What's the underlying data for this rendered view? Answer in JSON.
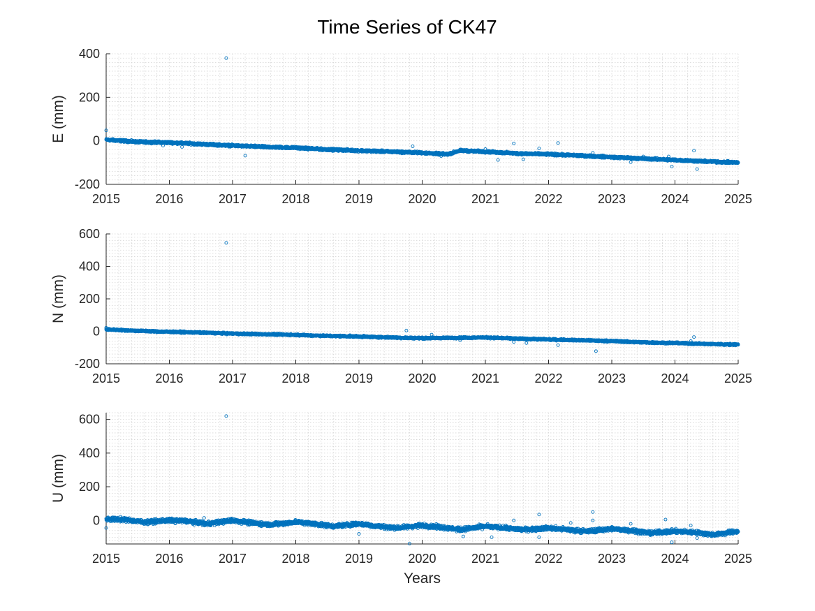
{
  "figure_title": "Time Series of CK47",
  "chart_data": [
    {
      "type": "scatter",
      "title": "",
      "xlabel": "",
      "ylabel": "E (mm)",
      "xlim": [
        2015,
        2025
      ],
      "ylim": [
        -200,
        400
      ],
      "x_ticks": [
        "2015",
        "2016",
        "2017",
        "2018",
        "2019",
        "2020",
        "2021",
        "2022",
        "2023",
        "2024",
        "2025"
      ],
      "y_ticks": [
        "-200",
        "0",
        "200",
        "400"
      ],
      "grid": true,
      "marker_color": "#0072BD",
      "trend": [
        [
          2015.0,
          5
        ],
        [
          2015.5,
          -5
        ],
        [
          2016.0,
          -8
        ],
        [
          2016.5,
          -15
        ],
        [
          2017.0,
          -22
        ],
        [
          2017.5,
          -28
        ],
        [
          2018.0,
          -32
        ],
        [
          2018.5,
          -40
        ],
        [
          2019.0,
          -45
        ],
        [
          2019.5,
          -50
        ],
        [
          2020.0,
          -55
        ],
        [
          2020.4,
          -62
        ],
        [
          2020.6,
          -45
        ],
        [
          2021.0,
          -50
        ],
        [
          2021.5,
          -58
        ],
        [
          2022.0,
          -62
        ],
        [
          2022.5,
          -68
        ],
        [
          2023.0,
          -75
        ],
        [
          2023.5,
          -82
        ],
        [
          2024.0,
          -88
        ],
        [
          2024.5,
          -95
        ],
        [
          2025.0,
          -100
        ]
      ],
      "outliers": [
        [
          2015.0,
          48
        ],
        [
          2015.9,
          -22
        ],
        [
          2016.2,
          -28
        ],
        [
          2016.9,
          380
        ],
        [
          2017.2,
          -68
        ],
        [
          2019.85,
          -25
        ],
        [
          2020.3,
          -70
        ],
        [
          2021.0,
          -38
        ],
        [
          2021.2,
          -88
        ],
        [
          2021.45,
          -12
        ],
        [
          2021.6,
          -85
        ],
        [
          2021.85,
          -35
        ],
        [
          2022.15,
          -10
        ],
        [
          2022.7,
          -55
        ],
        [
          2023.3,
          -98
        ],
        [
          2023.5,
          -72
        ],
        [
          2023.9,
          -72
        ],
        [
          2023.95,
          -118
        ],
        [
          2024.3,
          -45
        ],
        [
          2024.35,
          -130
        ]
      ],
      "noise_amplitude": 5
    },
    {
      "type": "scatter",
      "title": "",
      "xlabel": "",
      "ylabel": "N (mm)",
      "xlim": [
        2015,
        2025
      ],
      "ylim": [
        -200,
        600
      ],
      "x_ticks": [
        "2015",
        "2016",
        "2017",
        "2018",
        "2019",
        "2020",
        "2021",
        "2022",
        "2023",
        "2024",
        "2025"
      ],
      "y_ticks": [
        "-200",
        "0",
        "200",
        "400",
        "600"
      ],
      "grid": true,
      "marker_color": "#0072BD",
      "trend": [
        [
          2015.0,
          12
        ],
        [
          2015.5,
          3
        ],
        [
          2016.0,
          -3
        ],
        [
          2016.5,
          -8
        ],
        [
          2017.0,
          -14
        ],
        [
          2017.5,
          -18
        ],
        [
          2018.0,
          -22
        ],
        [
          2018.5,
          -28
        ],
        [
          2019.0,
          -32
        ],
        [
          2019.5,
          -38
        ],
        [
          2020.0,
          -42
        ],
        [
          2020.5,
          -40
        ],
        [
          2021.0,
          -38
        ],
        [
          2021.5,
          -45
        ],
        [
          2022.0,
          -50
        ],
        [
          2022.5,
          -55
        ],
        [
          2023.0,
          -60
        ],
        [
          2023.5,
          -68
        ],
        [
          2024.0,
          -72
        ],
        [
          2024.5,
          -78
        ],
        [
          2025.0,
          -82
        ]
      ],
      "outliers": [
        [
          2015.0,
          22
        ],
        [
          2016.9,
          545
        ],
        [
          2019.75,
          5
        ],
        [
          2020.15,
          -20
        ],
        [
          2020.6,
          -55
        ],
        [
          2021.45,
          -65
        ],
        [
          2021.65,
          -72
        ],
        [
          2022.15,
          -85
        ],
        [
          2022.75,
          -122
        ],
        [
          2024.3,
          -35
        ],
        [
          2024.25,
          -60
        ]
      ],
      "noise_amplitude": 5
    },
    {
      "type": "scatter",
      "title": "",
      "xlabel": "Years",
      "ylabel": "U (mm)",
      "xlim": [
        2015,
        2025
      ],
      "ylim": [
        -140,
        640
      ],
      "x_ticks": [
        "2015",
        "2016",
        "2017",
        "2018",
        "2019",
        "2020",
        "2021",
        "2022",
        "2023",
        "2024",
        "2025"
      ],
      "y_ticks": [
        "0",
        "200",
        "400",
        "600"
      ],
      "grid": true,
      "marker_color": "#0072BD",
      "trend": [
        [
          2015.0,
          8
        ],
        [
          2015.3,
          5
        ],
        [
          2015.6,
          -10
        ],
        [
          2016.0,
          0
        ],
        [
          2016.3,
          -5
        ],
        [
          2016.6,
          -20
        ],
        [
          2017.0,
          0
        ],
        [
          2017.3,
          -15
        ],
        [
          2017.6,
          -25
        ],
        [
          2018.0,
          -10
        ],
        [
          2018.3,
          -20
        ],
        [
          2018.6,
          -35
        ],
        [
          2019.0,
          -20
        ],
        [
          2019.3,
          -35
        ],
        [
          2019.6,
          -45
        ],
        [
          2020.0,
          -30
        ],
        [
          2020.3,
          -40
        ],
        [
          2020.6,
          -55
        ],
        [
          2021.0,
          -35
        ],
        [
          2021.3,
          -45
        ],
        [
          2021.6,
          -55
        ],
        [
          2022.0,
          -45
        ],
        [
          2022.3,
          -55
        ],
        [
          2022.6,
          -65
        ],
        [
          2023.0,
          -50
        ],
        [
          2023.3,
          -60
        ],
        [
          2023.6,
          -75
        ],
        [
          2024.0,
          -65
        ],
        [
          2024.3,
          -70
        ],
        [
          2024.6,
          -85
        ],
        [
          2025.0,
          -65
        ]
      ],
      "outliers": [
        [
          2015.0,
          -45
        ],
        [
          2016.55,
          15
        ],
        [
          2016.9,
          620
        ],
        [
          2019.0,
          -80
        ],
        [
          2019.8,
          -138
        ],
        [
          2020.65,
          -95
        ],
        [
          2021.1,
          -100
        ],
        [
          2021.45,
          0
        ],
        [
          2021.85,
          35
        ],
        [
          2021.85,
          -100
        ],
        [
          2022.35,
          -15
        ],
        [
          2022.7,
          50
        ],
        [
          2022.7,
          0
        ],
        [
          2023.3,
          -20
        ],
        [
          2023.85,
          5
        ],
        [
          2023.95,
          -130
        ],
        [
          2024.25,
          -30
        ],
        [
          2024.35,
          -105
        ]
      ],
      "noise_amplitude": 12
    }
  ]
}
